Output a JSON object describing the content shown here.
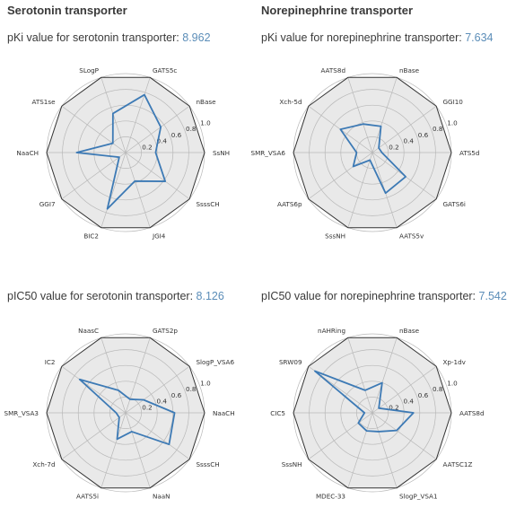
{
  "columns": [
    "Serotonin transporter",
    "Norepinephrine transporter"
  ],
  "colors": {
    "line": "#3d7ab5",
    "fill": "#e9e9e9",
    "grid": "#b8b8b8",
    "outer": "#333333",
    "value_text": "#5b8db8"
  },
  "chart_data": [
    {
      "type": "radar",
      "title_prefix": "pKi value for serotonin transporter: ",
      "title_value": "8.962",
      "rlim": [
        0,
        1.0
      ],
      "rticks": [
        "0.2",
        "0.4",
        "0.6",
        "0.8",
        "1.0"
      ],
      "axes": [
        "SsNH",
        "nBase",
        "GATS5c",
        "SLogP",
        "ATS1se",
        "NaaCH",
        "GGI7",
        "BIC2",
        "JGI4",
        "SsssCH"
      ],
      "values": [
        0.38,
        0.55,
        0.77,
        0.52,
        0.2,
        0.62,
        0.1,
        0.75,
        0.38,
        0.62
      ]
    },
    {
      "type": "radar",
      "title_prefix": "pKi value for norepinephrine transporter: ",
      "title_value": "7.634",
      "rlim": [
        0,
        1.0
      ],
      "rticks": [
        "0.2",
        "0.4",
        "0.6",
        "0.8",
        "1.0"
      ],
      "axes": [
        "ATS5d",
        "GGI10",
        "nBase",
        "AATS8d",
        "Xch-5d",
        "SMR_VSA6",
        "AATS6p",
        "SssNH",
        "AATS5v",
        "GATS6i"
      ],
      "values": [
        0.12,
        0.1,
        0.35,
        0.38,
        0.5,
        0.2,
        0.3,
        0.1,
        0.54,
        0.52
      ]
    },
    {
      "type": "radar",
      "title_prefix": "pIC50 value for serotonin transporter: ",
      "title_value": "8.126",
      "rlim": [
        0,
        1.0
      ],
      "rticks": [
        "0.2",
        "0.4",
        "0.6",
        "0.8",
        "1.0"
      ],
      "axes": [
        "NaaCH",
        "SlogP_VSA6",
        "GATS2p",
        "NaasC",
        "IC2",
        "SMR_VSA3",
        "Xch-7d",
        "AATS5i",
        "NaaN",
        "SsssCH"
      ],
      "values": [
        0.62,
        0.28,
        0.18,
        0.3,
        0.72,
        0.12,
        0.1,
        0.35,
        0.25,
        0.68
      ]
    },
    {
      "type": "radar",
      "title_prefix": "pIC50 value for norepinephrine transporter: ",
      "title_value": "7.542",
      "rlim": [
        0,
        1.0
      ],
      "rticks": [
        "0.2",
        "0.4",
        "0.6",
        "0.8",
        "1.0"
      ],
      "axes": [
        "AATS8d",
        "Xp-1dv",
        "nBase",
        "nAHRing",
        "SRW09",
        "CIC5",
        "SssNH",
        "MDEC-33",
        "SlogP_VSA1",
        "AATSC1Z"
      ],
      "values": [
        0.52,
        0.1,
        0.4,
        0.3,
        0.9,
        0.1,
        0.22,
        0.24,
        0.25,
        0.38
      ]
    }
  ]
}
